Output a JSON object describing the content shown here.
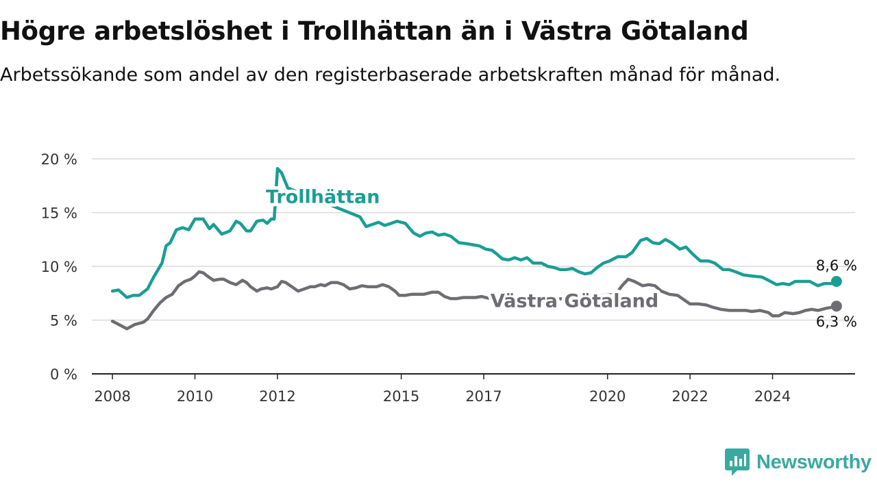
{
  "header": {
    "title": "Högre arbetslöshet i Trollhättan än i Västra Götaland",
    "subtitle": "Arbetssökande som andel av den registerbaserade arbetskraften månad för månad."
  },
  "brand": {
    "name": "Newsworthy",
    "icon": "newsworthy-logo-icon",
    "color": "#3aa9a0"
  },
  "chart_data": {
    "type": "line",
    "title": "Högre arbetslöshet i Trollhättan än i Västra Götaland",
    "subtitle": "Arbetssökande som andel av den registerbaserade arbetskraften månad för månad.",
    "xlabel": "",
    "ylabel": "",
    "xlim": [
      2007.5,
      2026.0
    ],
    "ylim": [
      0,
      20
    ],
    "y_ticks": [
      0,
      5,
      10,
      15,
      20
    ],
    "y_tick_labels": [
      "0 %",
      "5 %",
      "10 %",
      "15 %",
      "20 %"
    ],
    "x_ticks": [
      2008,
      2010,
      2012,
      2015,
      2017,
      2020,
      2022,
      2024
    ],
    "x_tick_labels": [
      "2008",
      "2010",
      "2012",
      "2015",
      "2017",
      "2020",
      "2022",
      "2024"
    ],
    "grid": "horizontal",
    "series": [
      {
        "name": "Trollhättan",
        "color": "#1a9e94",
        "end_label": "8,6 %",
        "points": [
          [
            2008.0,
            7.7
          ],
          [
            2008.15,
            7.8
          ],
          [
            2008.35,
            7.1
          ],
          [
            2008.5,
            7.3
          ],
          [
            2008.65,
            7.3
          ],
          [
            2008.85,
            7.9
          ],
          [
            2009.0,
            9.0
          ],
          [
            2009.2,
            10.3
          ],
          [
            2009.3,
            11.9
          ],
          [
            2009.4,
            12.2
          ],
          [
            2009.55,
            13.4
          ],
          [
            2009.7,
            13.6
          ],
          [
            2009.85,
            13.4
          ],
          [
            2010.0,
            14.4
          ],
          [
            2010.2,
            14.4
          ],
          [
            2010.35,
            13.5
          ],
          [
            2010.45,
            13.9
          ],
          [
            2010.65,
            13.0
          ],
          [
            2010.85,
            13.3
          ],
          [
            2011.0,
            14.2
          ],
          [
            2011.1,
            14.0
          ],
          [
            2011.25,
            13.3
          ],
          [
            2011.35,
            13.3
          ],
          [
            2011.5,
            14.2
          ],
          [
            2011.65,
            14.3
          ],
          [
            2011.75,
            14.0
          ],
          [
            2011.85,
            14.4
          ],
          [
            2011.92,
            14.4
          ],
          [
            2012.0,
            19.1
          ],
          [
            2012.1,
            18.7
          ],
          [
            2012.25,
            17.3
          ],
          [
            2014.0,
            14.6
          ],
          [
            2014.15,
            13.7
          ],
          [
            2014.3,
            13.9
          ],
          [
            2014.45,
            14.1
          ],
          [
            2014.6,
            13.8
          ],
          [
            2014.75,
            14.0
          ],
          [
            2014.9,
            14.2
          ],
          [
            2015.1,
            14.0
          ],
          [
            2015.3,
            13.1
          ],
          [
            2015.45,
            12.8
          ],
          [
            2015.6,
            13.1
          ],
          [
            2015.75,
            13.2
          ],
          [
            2015.9,
            12.9
          ],
          [
            2016.05,
            13.0
          ],
          [
            2016.2,
            12.8
          ],
          [
            2016.4,
            12.2
          ],
          [
            2016.6,
            12.1
          ],
          [
            2016.75,
            12.0
          ],
          [
            2016.9,
            11.9
          ],
          [
            2017.05,
            11.6
          ],
          [
            2017.2,
            11.5
          ],
          [
            2017.3,
            11.2
          ],
          [
            2017.45,
            10.7
          ],
          [
            2017.6,
            10.6
          ],
          [
            2017.75,
            10.8
          ],
          [
            2017.9,
            10.6
          ],
          [
            2018.05,
            10.8
          ],
          [
            2018.2,
            10.3
          ],
          [
            2018.4,
            10.3
          ],
          [
            2018.55,
            10.0
          ],
          [
            2018.7,
            9.9
          ],
          [
            2018.85,
            9.7
          ],
          [
            2019.0,
            9.7
          ],
          [
            2019.15,
            9.8
          ],
          [
            2019.3,
            9.5
          ],
          [
            2019.45,
            9.3
          ],
          [
            2019.6,
            9.4
          ],
          [
            2019.75,
            9.9
          ],
          [
            2019.9,
            10.3
          ],
          [
            2020.05,
            10.5
          ],
          [
            2020.25,
            10.9
          ],
          [
            2020.45,
            10.9
          ],
          [
            2020.6,
            11.3
          ],
          [
            2020.8,
            12.4
          ],
          [
            2020.95,
            12.6
          ],
          [
            2021.1,
            12.2
          ],
          [
            2021.25,
            12.1
          ],
          [
            2021.4,
            12.5
          ],
          [
            2021.55,
            12.2
          ],
          [
            2021.75,
            11.6
          ],
          [
            2021.9,
            11.8
          ],
          [
            2022.05,
            11.2
          ],
          [
            2022.25,
            10.5
          ],
          [
            2022.45,
            10.5
          ],
          [
            2022.6,
            10.3
          ],
          [
            2022.8,
            9.7
          ],
          [
            2022.95,
            9.7
          ],
          [
            2023.1,
            9.5
          ],
          [
            2023.3,
            9.2
          ],
          [
            2023.5,
            9.1
          ],
          [
            2023.75,
            9.0
          ],
          [
            2023.95,
            8.6
          ],
          [
            2024.1,
            8.3
          ],
          [
            2024.25,
            8.4
          ],
          [
            2024.4,
            8.3
          ],
          [
            2024.55,
            8.6
          ],
          [
            2024.75,
            8.6
          ],
          [
            2024.9,
            8.6
          ],
          [
            2025.1,
            8.2
          ],
          [
            2025.25,
            8.4
          ],
          [
            2025.45,
            8.4
          ],
          [
            2025.55,
            8.6
          ]
        ]
      },
      {
        "name": "Västra Götaland",
        "color": "#6e6d73",
        "end_label": "6,3 %",
        "points": [
          [
            2008.0,
            4.9
          ],
          [
            2008.15,
            4.6
          ],
          [
            2008.35,
            4.2
          ],
          [
            2008.55,
            4.6
          ],
          [
            2008.75,
            4.8
          ],
          [
            2008.85,
            5.1
          ],
          [
            2009.0,
            5.9
          ],
          [
            2009.15,
            6.6
          ],
          [
            2009.3,
            7.1
          ],
          [
            2009.45,
            7.4
          ],
          [
            2009.6,
            8.2
          ],
          [
            2009.75,
            8.6
          ],
          [
            2009.9,
            8.8
          ],
          [
            2010.0,
            9.1
          ],
          [
            2010.1,
            9.5
          ],
          [
            2010.2,
            9.4
          ],
          [
            2010.3,
            9.1
          ],
          [
            2010.45,
            8.7
          ],
          [
            2010.6,
            8.8
          ],
          [
            2010.7,
            8.8
          ],
          [
            2010.85,
            8.5
          ],
          [
            2011.0,
            8.3
          ],
          [
            2011.15,
            8.7
          ],
          [
            2011.25,
            8.5
          ],
          [
            2011.35,
            8.1
          ],
          [
            2011.5,
            7.7
          ],
          [
            2011.6,
            7.9
          ],
          [
            2011.75,
            8.0
          ],
          [
            2011.85,
            7.9
          ],
          [
            2012.0,
            8.1
          ],
          [
            2012.1,
            8.6
          ],
          [
            2012.2,
            8.5
          ],
          [
            2012.35,
            8.1
          ],
          [
            2012.5,
            7.7
          ],
          [
            2012.65,
            7.9
          ],
          [
            2012.8,
            8.1
          ],
          [
            2012.9,
            8.1
          ],
          [
            2013.05,
            8.3
          ],
          [
            2013.15,
            8.2
          ],
          [
            2013.3,
            8.5
          ],
          [
            2013.45,
            8.5
          ],
          [
            2013.6,
            8.3
          ],
          [
            2013.75,
            7.9
          ],
          [
            2013.9,
            8.0
          ],
          [
            2014.05,
            8.2
          ],
          [
            2014.2,
            8.1
          ],
          [
            2014.4,
            8.1
          ],
          [
            2014.55,
            8.3
          ],
          [
            2014.7,
            8.1
          ],
          [
            2014.85,
            7.7
          ],
          [
            2014.95,
            7.3
          ],
          [
            2015.1,
            7.3
          ],
          [
            2015.25,
            7.4
          ],
          [
            2015.45,
            7.4
          ],
          [
            2015.55,
            7.4
          ],
          [
            2015.75,
            7.6
          ],
          [
            2015.9,
            7.6
          ],
          [
            2016.05,
            7.2
          ],
          [
            2016.2,
            7.0
          ],
          [
            2016.35,
            7.0
          ],
          [
            2016.5,
            7.1
          ],
          [
            2016.65,
            7.1
          ],
          [
            2016.8,
            7.1
          ],
          [
            2016.95,
            7.2
          ],
          [
            2017.15,
            7.0
          ],
          [
            2017.35,
            6.6
          ],
          [
            2017.5,
            6.6
          ],
          [
            2017.65,
            6.7
          ],
          [
            2017.85,
            6.8
          ],
          [
            2018.05,
            6.8
          ],
          [
            2018.15,
            6.9
          ],
          [
            2018.3,
            6.8
          ],
          [
            2020.2,
            7.4
          ],
          [
            2020.35,
            8.2
          ],
          [
            2020.5,
            8.8
          ],
          [
            2020.65,
            8.6
          ],
          [
            2020.85,
            8.2
          ],
          [
            2021.0,
            8.3
          ],
          [
            2021.15,
            8.2
          ],
          [
            2021.3,
            7.7
          ],
          [
            2021.5,
            7.4
          ],
          [
            2021.7,
            7.3
          ],
          [
            2021.85,
            6.9
          ],
          [
            2022.0,
            6.5
          ],
          [
            2022.2,
            6.5
          ],
          [
            2022.4,
            6.4
          ],
          [
            2022.55,
            6.2
          ],
          [
            2022.75,
            6.0
          ],
          [
            2022.95,
            5.9
          ],
          [
            2023.15,
            5.9
          ],
          [
            2023.35,
            5.9
          ],
          [
            2023.5,
            5.8
          ],
          [
            2023.7,
            5.9
          ],
          [
            2023.9,
            5.7
          ],
          [
            2024.0,
            5.4
          ],
          [
            2024.15,
            5.4
          ],
          [
            2024.3,
            5.7
          ],
          [
            2024.5,
            5.6
          ],
          [
            2024.65,
            5.7
          ],
          [
            2024.8,
            5.9
          ],
          [
            2024.95,
            6.0
          ],
          [
            2025.1,
            5.9
          ],
          [
            2025.3,
            6.1
          ],
          [
            2025.45,
            6.2
          ],
          [
            2025.55,
            6.3
          ]
        ]
      }
    ],
    "series_labels": [
      {
        "series": "Trollhättan",
        "text": "Trollhättan",
        "x": 2013.1,
        "y": 15.9
      },
      {
        "series": "Västra Götaland",
        "text": "Västra Götaland",
        "x": 2019.2,
        "y": 6.2
      }
    ]
  }
}
